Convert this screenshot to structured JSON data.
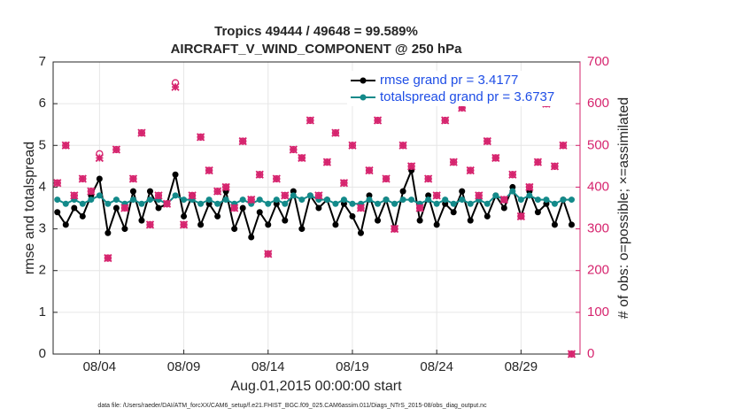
{
  "chart_data": {
    "type": "line",
    "title": "Tropics 49444 / 49648 = 99.589%",
    "subtitle": "AIRCRAFT_V_WIND_COMPONENT @ 250 hPa",
    "xlabel": "Aug.01,2015 00:00:00 start",
    "ylabel": "rmse and totalspread",
    "y2label": "# of obs: o=possible; ×=assimilated",
    "footnote": "data file: /Users/raeder/DAI/ATM_forcXX/CAM6_setup/f.e21.FHIST_BGC.f09_025.CAM6assim.011/Diags_NTrS_2015-08/obs_diag_output.nc",
    "x": [
      1.5,
      2,
      2.5,
      3,
      3.5,
      4,
      4.5,
      5,
      5.5,
      6,
      6.5,
      7,
      7.5,
      8,
      8.5,
      9,
      9.5,
      10,
      10.5,
      11,
      11.5,
      12,
      12.5,
      13,
      13.5,
      14,
      14.5,
      15,
      15.5,
      16,
      16.5,
      17,
      17.5,
      18,
      18.5,
      19,
      19.5,
      20,
      20.5,
      21,
      21.5,
      22,
      22.5,
      23,
      23.5,
      24,
      24.5,
      25,
      25.5,
      26,
      26.5,
      27,
      27.5,
      28,
      28.5,
      29,
      29.5,
      30,
      30.5,
      31,
      31.5,
      32
    ],
    "xlim": [
      1.25,
      32.5
    ],
    "xticks": [
      {
        "value": 4,
        "label": "08/04"
      },
      {
        "value": 9,
        "label": "08/09"
      },
      {
        "value": 14,
        "label": "08/14"
      },
      {
        "value": 19,
        "label": "08/19"
      },
      {
        "value": 24,
        "label": "08/24"
      },
      {
        "value": 29,
        "label": "08/29"
      }
    ],
    "ylim": [
      0,
      7
    ],
    "yticks": [
      0,
      1,
      2,
      3,
      4,
      5,
      6,
      7
    ],
    "y2lim": [
      0,
      700
    ],
    "y2ticks": [
      0,
      100,
      200,
      300,
      400,
      500,
      600,
      700
    ],
    "grid": true,
    "legend": "upper right",
    "series": [
      {
        "name": "rmse grand pr = 3.4177",
        "color": "#000000",
        "values": [
          3.4,
          3.1,
          3.5,
          3.3,
          3.8,
          4.2,
          2.9,
          3.5,
          3.0,
          3.9,
          3.2,
          3.9,
          3.5,
          3.6,
          4.3,
          3.3,
          3.8,
          3.1,
          3.6,
          3.3,
          3.9,
          3.0,
          3.5,
          2.8,
          3.4,
          3.1,
          3.6,
          3.2,
          3.9,
          3.0,
          3.8,
          3.5,
          3.7,
          3.1,
          3.6,
          3.3,
          2.9,
          3.8,
          3.2,
          3.7,
          3.0,
          3.9,
          4.4,
          3.2,
          3.8,
          3.1,
          3.6,
          3.4,
          3.9,
          3.2,
          3.7,
          3.3,
          3.8,
          3.5,
          4.0,
          3.3,
          3.9,
          3.4,
          3.6,
          3.1,
          3.7,
          3.1
        ]
      },
      {
        "name": "totalspread grand pr = 3.6737",
        "color": "#138a8a",
        "values": [
          3.7,
          3.6,
          3.7,
          3.6,
          3.7,
          3.8,
          3.6,
          3.7,
          3.6,
          3.7,
          3.6,
          3.7,
          3.7,
          3.6,
          3.8,
          3.7,
          3.7,
          3.6,
          3.7,
          3.6,
          3.7,
          3.6,
          3.7,
          3.6,
          3.7,
          3.6,
          3.7,
          3.6,
          3.8,
          3.7,
          3.8,
          3.7,
          3.7,
          3.6,
          3.7,
          3.6,
          3.6,
          3.7,
          3.6,
          3.7,
          3.6,
          3.7,
          3.7,
          3.6,
          3.7,
          3.6,
          3.7,
          3.6,
          3.7,
          3.6,
          3.7,
          3.6,
          3.8,
          3.7,
          3.9,
          3.7,
          3.8,
          3.7,
          3.7,
          3.6,
          3.7,
          3.7
        ]
      },
      {
        "color": "#d6246e",
        "axis": "y2",
        "values": [
          410,
          500,
          380,
          420,
          390,
          480,
          230,
          490,
          350,
          420,
          530,
          310,
          380,
          360,
          650,
          310,
          380,
          520,
          440,
          390,
          400,
          350,
          510,
          370,
          430,
          240,
          420,
          380,
          490,
          470,
          560,
          380,
          460,
          530,
          410,
          500,
          350,
          440,
          560,
          420,
          300,
          500,
          450,
          350,
          420,
          380,
          560,
          460,
          590,
          440,
          380,
          510,
          470,
          370,
          430,
          330,
          400,
          460,
          600,
          450,
          500,
          0
        ]
      },
      {
        "color": "#d6246e",
        "axis": "y2",
        "values": [
          410,
          500,
          380,
          420,
          390,
          470,
          230,
          490,
          350,
          420,
          530,
          310,
          380,
          360,
          640,
          310,
          380,
          520,
          440,
          390,
          400,
          350,
          510,
          370,
          430,
          240,
          420,
          380,
          490,
          470,
          560,
          380,
          460,
          530,
          410,
          500,
          350,
          440,
          560,
          420,
          300,
          500,
          450,
          350,
          420,
          380,
          560,
          460,
          590,
          440,
          380,
          510,
          470,
          370,
          430,
          330,
          400,
          460,
          600,
          450,
          500,
          0
        ]
      }
    ]
  }
}
